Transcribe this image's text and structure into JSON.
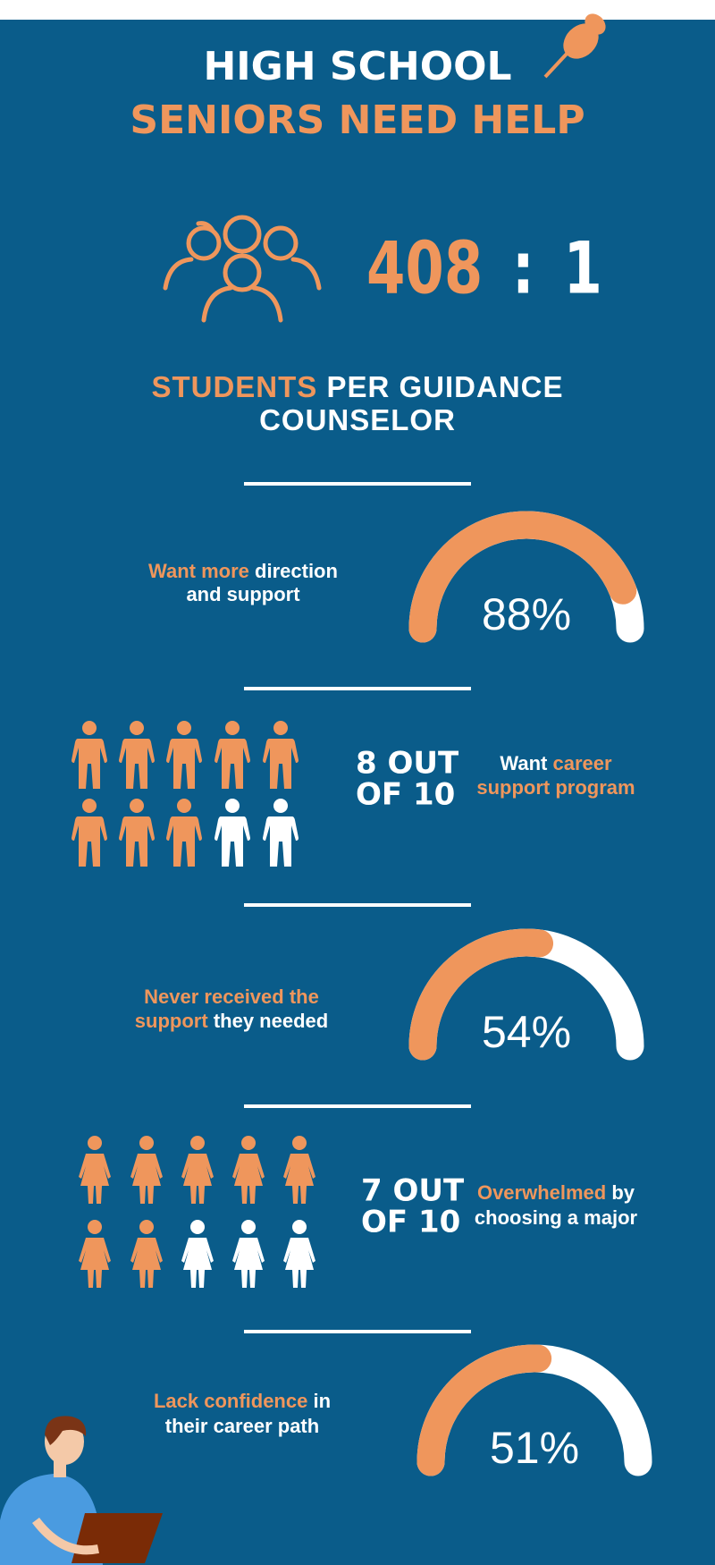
{
  "header": {
    "title_line1": "HIGH SCHOOL",
    "title_line2": "SENIORS NEED HELP"
  },
  "ratio": {
    "left": "408",
    "separator": ":",
    "right": "1",
    "caption_lines": [
      [
        {
          "text": "STUDENTS",
          "accent": true
        },
        {
          "text": "PER GUIDANCE",
          "accent": false
        }
      ],
      [
        {
          "text": "COUNSELOR",
          "accent": false
        }
      ]
    ]
  },
  "sections": [
    {
      "kind": "gauge",
      "value": 88,
      "label": "88%",
      "text_lines": [
        [
          {
            "text": "Want more",
            "accent": true
          },
          {
            "text": "direction",
            "accent": false
          }
        ],
        [
          {
            "text": "and support",
            "accent": false
          }
        ]
      ]
    },
    {
      "kind": "people",
      "icon": "man",
      "filled": 8,
      "total": 10,
      "stat_lines": [
        "8 OUT",
        "OF 10"
      ],
      "text_lines": [
        [
          {
            "text": "Want",
            "accent": false
          },
          {
            "text": "career",
            "accent": true
          }
        ],
        [
          {
            "text": "support program",
            "accent": true
          }
        ]
      ]
    },
    {
      "kind": "gauge",
      "value": 54,
      "label": "54%",
      "text_lines": [
        [
          {
            "text": "Never received the",
            "accent": true
          }
        ],
        [
          {
            "text": "support",
            "accent": true
          },
          {
            "text": "they needed",
            "accent": false
          }
        ]
      ]
    },
    {
      "kind": "people",
      "icon": "woman",
      "filled": 7,
      "total": 10,
      "stat_lines": [
        "7 OUT",
        "OF 10"
      ],
      "text_lines": [
        [
          {
            "text": "Overwhelmed",
            "accent": true
          },
          {
            "text": "by",
            "accent": false
          }
        ],
        [
          {
            "text": "choosing a major",
            "accent": false
          }
        ]
      ]
    },
    {
      "kind": "gauge",
      "value": 51,
      "label": "51%",
      "text_lines": [
        [
          {
            "text": "Lack confidence",
            "accent": true
          },
          {
            "text": "in",
            "accent": false
          }
        ],
        [
          {
            "text": "their career path",
            "accent": false
          }
        ]
      ]
    }
  ],
  "colors": {
    "background": "#0a5c8a",
    "accent": "#ef965c",
    "light": "#ffffff"
  }
}
